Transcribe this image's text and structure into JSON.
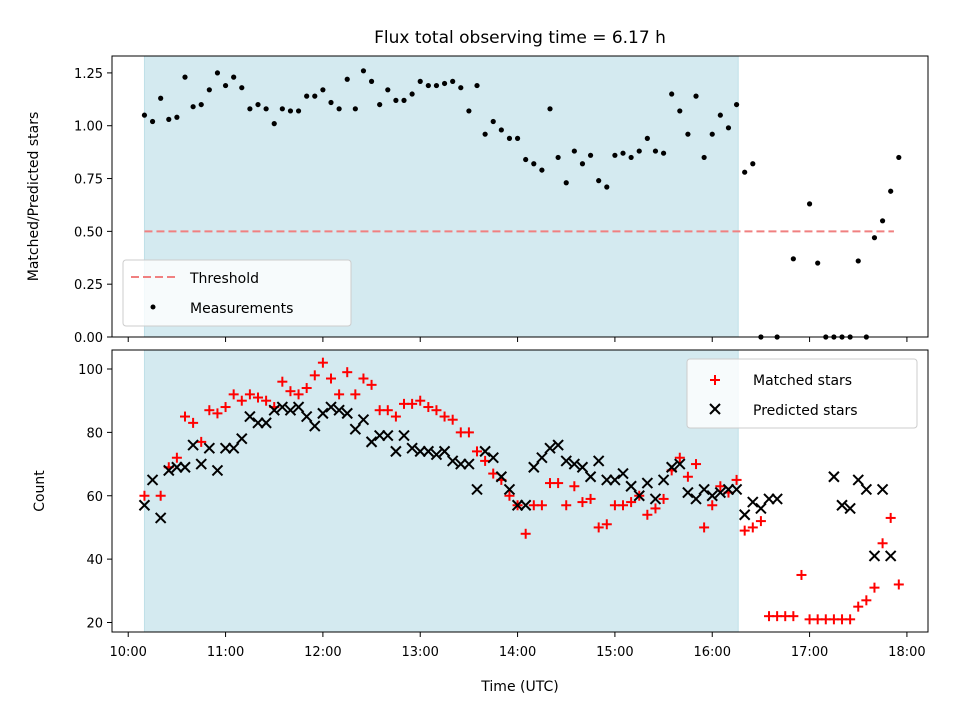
{
  "chart_data": [
    {
      "type": "scatter",
      "title": "Flux total observing time = 6.17 h",
      "xlabel": "",
      "ylabel": "Matched/Predicted stars",
      "ylim": [
        0,
        1.33
      ],
      "yticks": [
        "0.00",
        "0.25",
        "0.50",
        "0.75",
        "1.00",
        "1.25"
      ],
      "shaded_region": {
        "start": "10:10",
        "end": "16:16",
        "color": "#d4eaf0"
      },
      "threshold": {
        "name": "Threshold",
        "value": 0.5,
        "color": "#f08080"
      },
      "legend_position": "lower-left",
      "series": [
        {
          "name": "Measurements",
          "color": "#000000",
          "marker": "dot",
          "x": [
            "10:10",
            "10:15",
            "10:20",
            "10:25",
            "10:30",
            "10:35",
            "10:40",
            "10:45",
            "10:50",
            "10:55",
            "11:00",
            "11:05",
            "11:10",
            "11:15",
            "11:20",
            "11:25",
            "11:30",
            "11:35",
            "11:40",
            "11:45",
            "11:50",
            "11:55",
            "12:00",
            "12:05",
            "12:10",
            "12:15",
            "12:20",
            "12:25",
            "12:30",
            "12:35",
            "12:40",
            "12:45",
            "12:50",
            "12:55",
            "13:00",
            "13:05",
            "13:10",
            "13:15",
            "13:20",
            "13:25",
            "13:30",
            "13:35",
            "13:40",
            "13:45",
            "13:50",
            "13:55",
            "14:00",
            "14:05",
            "14:10",
            "14:15",
            "14:20",
            "14:25",
            "14:30",
            "14:35",
            "14:40",
            "14:45",
            "14:50",
            "14:55",
            "15:00",
            "15:05",
            "15:10",
            "15:15",
            "15:20",
            "15:25",
            "15:30",
            "15:35",
            "15:40",
            "15:45",
            "15:50",
            "15:55",
            "16:00",
            "16:05",
            "16:10",
            "16:15",
            "16:20",
            "16:25",
            "16:30",
            "16:40",
            "16:50",
            "17:00",
            "17:05",
            "17:10",
            "17:15",
            "17:20",
            "17:25",
            "17:30",
            "17:35",
            "17:40",
            "17:45",
            "17:50",
            "17:55"
          ],
          "y": [
            1.05,
            1.02,
            1.13,
            1.03,
            1.04,
            1.23,
            1.09,
            1.1,
            1.17,
            1.25,
            1.19,
            1.23,
            1.18,
            1.08,
            1.1,
            1.08,
            1.01,
            1.08,
            1.07,
            1.07,
            1.14,
            1.14,
            1.17,
            1.11,
            1.08,
            1.22,
            1.08,
            1.26,
            1.21,
            1.1,
            1.17,
            1.12,
            1.12,
            1.15,
            1.21,
            1.19,
            1.19,
            1.2,
            1.21,
            1.18,
            1.07,
            1.19,
            0.96,
            1.02,
            0.98,
            0.94,
            0.94,
            0.84,
            0.82,
            0.79,
            1.08,
            0.85,
            0.73,
            0.88,
            0.82,
            0.86,
            0.74,
            0.71,
            0.86,
            0.87,
            0.85,
            0.88,
            0.94,
            0.88,
            0.87,
            1.15,
            1.07,
            0.96,
            1.14,
            0.85,
            0.96,
            1.05,
            0.99,
            1.1,
            0.78,
            0.82,
            0.0,
            0.0,
            0.37,
            0.63,
            0.35,
            0.0,
            0.0,
            0.0,
            0.0,
            0.36,
            0.0,
            0.47,
            0.55,
            0.69,
            0.85
          ]
        }
      ]
    },
    {
      "type": "scatter",
      "title": "",
      "xlabel": "Time (UTC)",
      "ylabel": "Count",
      "ylim": [
        17,
        106
      ],
      "yticks": [
        "20",
        "40",
        "60",
        "80",
        "100"
      ],
      "xticks": [
        "10:00",
        "11:00",
        "12:00",
        "13:00",
        "14:00",
        "15:00",
        "16:00",
        "17:00",
        "18:00"
      ],
      "xlim": [
        "09:50",
        "18:13"
      ],
      "shaded_region": {
        "start": "10:10",
        "end": "16:16",
        "color": "#d4eaf0"
      },
      "legend_position": "top-right",
      "series": [
        {
          "name": "Matched stars",
          "color": "#ff0000",
          "marker": "plus",
          "x": [
            "10:10",
            "10:20",
            "10:25",
            "10:30",
            "10:35",
            "10:40",
            "10:45",
            "10:50",
            "10:55",
            "11:00",
            "11:05",
            "11:10",
            "11:15",
            "11:20",
            "11:25",
            "11:30",
            "11:35",
            "11:40",
            "11:45",
            "11:50",
            "11:55",
            "12:00",
            "12:05",
            "12:10",
            "12:15",
            "12:20",
            "12:25",
            "12:30",
            "12:35",
            "12:40",
            "12:45",
            "12:50",
            "12:55",
            "13:00",
            "13:05",
            "13:10",
            "13:15",
            "13:20",
            "13:25",
            "13:30",
            "13:35",
            "13:40",
            "13:45",
            "13:50",
            "13:55",
            "14:00",
            "14:05",
            "14:10",
            "14:15",
            "14:20",
            "14:25",
            "14:30",
            "14:35",
            "14:40",
            "14:45",
            "14:50",
            "14:55",
            "15:00",
            "15:05",
            "15:10",
            "15:15",
            "15:20",
            "15:25",
            "15:30",
            "15:35",
            "15:40",
            "15:45",
            "15:50",
            "15:55",
            "16:00",
            "16:05",
            "16:10",
            "16:15",
            "16:20",
            "16:25",
            "16:30",
            "16:35",
            "16:40",
            "16:45",
            "16:50",
            "16:55",
            "17:00",
            "17:05",
            "17:10",
            "17:15",
            "17:20",
            "17:25",
            "17:30",
            "17:35",
            "17:40",
            "17:45",
            "17:50",
            "17:55"
          ],
          "y": [
            60,
            60,
            69,
            72,
            85,
            83,
            77,
            87,
            86,
            88,
            92,
            90,
            92,
            91,
            90,
            88,
            96,
            93,
            92,
            94,
            98,
            102,
            97,
            92,
            99,
            92,
            97,
            95,
            87,
            87,
            85,
            89,
            89,
            90,
            88,
            87,
            85,
            84,
            80,
            80,
            74,
            71,
            67,
            65,
            60,
            57,
            48,
            57,
            57,
            64,
            64,
            57,
            63,
            58,
            59,
            50,
            51,
            57,
            57,
            58,
            60,
            54,
            56,
            59,
            68,
            72,
            66,
            70,
            50,
            57,
            63,
            61,
            65,
            49,
            50,
            52,
            22,
            22,
            22,
            22,
            35,
            21,
            21,
            21,
            21,
            21,
            21,
            25,
            27,
            31,
            45,
            53,
            32
          ]
        },
        {
          "name": "Predicted stars",
          "color": "#000000",
          "marker": "x",
          "x": [
            "10:10",
            "10:15",
            "10:20",
            "10:25",
            "10:30",
            "10:35",
            "10:40",
            "10:45",
            "10:50",
            "10:55",
            "11:00",
            "11:05",
            "11:10",
            "11:15",
            "11:20",
            "11:25",
            "11:30",
            "11:35",
            "11:40",
            "11:45",
            "11:50",
            "11:55",
            "12:00",
            "12:05",
            "12:10",
            "12:15",
            "12:20",
            "12:25",
            "12:30",
            "12:35",
            "12:40",
            "12:45",
            "12:50",
            "12:55",
            "13:00",
            "13:05",
            "13:10",
            "13:15",
            "13:20",
            "13:25",
            "13:30",
            "13:35",
            "13:40",
            "13:45",
            "13:50",
            "13:55",
            "14:00",
            "14:05",
            "14:10",
            "14:15",
            "14:20",
            "14:25",
            "14:30",
            "14:35",
            "14:40",
            "14:45",
            "14:50",
            "14:55",
            "15:00",
            "15:05",
            "15:10",
            "15:15",
            "15:20",
            "15:25",
            "15:30",
            "15:35",
            "15:40",
            "15:45",
            "15:50",
            "15:55",
            "16:00",
            "16:05",
            "16:10",
            "16:15",
            "16:20",
            "16:25",
            "16:30",
            "16:35",
            "16:40",
            "17:15",
            "17:20",
            "17:25",
            "17:30",
            "17:35",
            "17:40",
            "17:45",
            "17:50"
          ],
          "y": [
            57,
            65,
            53,
            68,
            69,
            69,
            76,
            70,
            75,
            68,
            75,
            75,
            78,
            85,
            83,
            83,
            87,
            88,
            87,
            88,
            85,
            82,
            86,
            88,
            87,
            86,
            81,
            84,
            77,
            79,
            79,
            74,
            79,
            75,
            74,
            74,
            73,
            74,
            71,
            70,
            70,
            62,
            74,
            72,
            66,
            62,
            57,
            57,
            69,
            72,
            75,
            76,
            71,
            70,
            69,
            66,
            71,
            65,
            65,
            67,
            63,
            60,
            64,
            59,
            65,
            69,
            70,
            61,
            59,
            62,
            60,
            61,
            62,
            62,
            54,
            58,
            56,
            59,
            59,
            66,
            57,
            56,
            65,
            62,
            41,
            62,
            41
          ]
        }
      ]
    }
  ]
}
